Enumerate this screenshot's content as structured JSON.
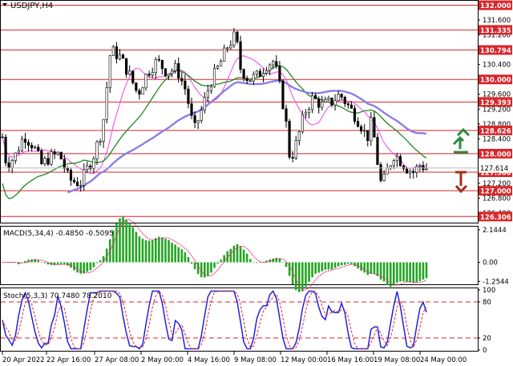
{
  "chart_data": {
    "type": "candlestick",
    "title": "USDJPY,H4",
    "price_axis": {
      "ticks": [
        "132.000",
        "131.600",
        "131.200",
        "130.800",
        "130.400",
        "130.000",
        "129.600",
        "129.200",
        "128.800",
        "128.400",
        "128.000",
        "127.600",
        "127.200",
        "126.800",
        "126.400"
      ],
      "range": [
        126.14,
        132.12
      ]
    },
    "current_price": {
      "label": "127.614",
      "value": 127.614
    },
    "levels": [
      {
        "label": "132.000",
        "value": 132.0
      },
      {
        "label": "131.335",
        "value": 131.335
      },
      {
        "label": "130.794",
        "value": 130.794
      },
      {
        "label": "130.000",
        "value": 130.0
      },
      {
        "label": "129.393",
        "value": 129.393
      },
      {
        "label": "128.626",
        "value": 128.626
      },
      {
        "label": "128.000",
        "value": 128.0
      },
      {
        "label": "127.500",
        "value": 127.5
      },
      {
        "label": "127.000",
        "value": 127.0
      },
      {
        "label": "126.306",
        "value": 126.306
      }
    ],
    "x_labels": [
      "20 Apr 2022",
      "22 Apr 16:00",
      "27 Apr 08:00",
      "2 May 00:00",
      "4 May 16:00",
      "9 May 08:00",
      "12 May 00:00",
      "16 May 16:00",
      "19 May 08:00",
      "24 May 00:00"
    ],
    "macd": {
      "label": "MACD(5,34,4) -0.4850 -0.5095",
      "ticks": [
        "2.1444",
        "0.00",
        "-1.2544"
      ],
      "range": [
        -1.45,
        2.35
      ]
    },
    "stochastic": {
      "label": "Stoch(5,3,3) 70.7480 78.2010",
      "ticks": [
        "100",
        "80",
        "20",
        "0"
      ],
      "levels": [
        80,
        20
      ]
    },
    "colors": {
      "level_line": "#d8262a",
      "level_label_bg": "#d8262a",
      "ma_fast": "#ee44ee",
      "ma_mid": "#1d8a1d",
      "ma_slow": "#8c7ee6",
      "macd_bars": "#22a622",
      "macd_signal": "#e8207d",
      "stoch_main": "#2222dd",
      "stoch_signal": "#d8262a",
      "arrow_up": "#2b8a3e",
      "arrow_down": "#a0301a"
    },
    "icons": [
      "dropdown-triangle-icon",
      "arrow-up-icon",
      "arrow-down-icon"
    ]
  }
}
